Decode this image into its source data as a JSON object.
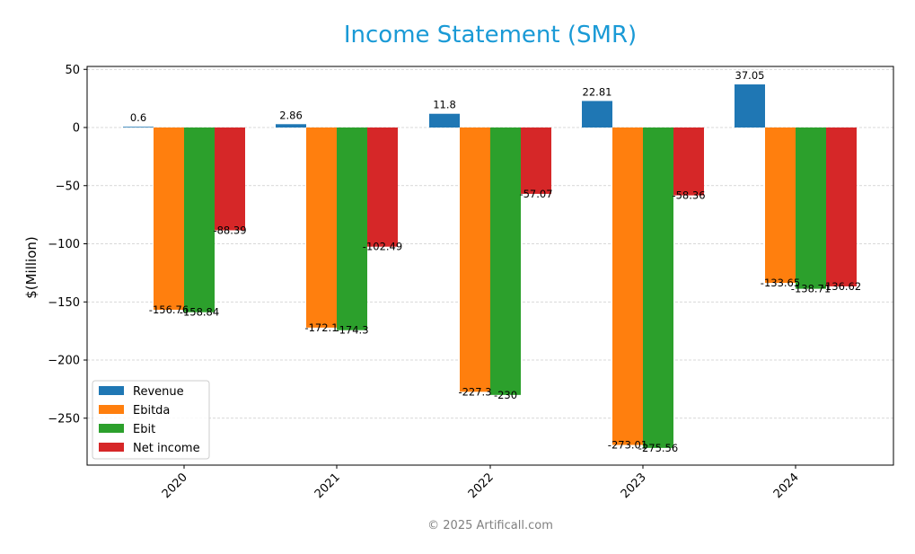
{
  "title": "Income Statement (SMR)",
  "footer": "© 2025 Artificall.com",
  "colors": {
    "title": "#1a9ad6",
    "footer": "#808080",
    "grid": "#cccccc"
  },
  "chart_data": {
    "type": "bar",
    "title": "Income Statement (SMR)",
    "xlabel": "",
    "ylabel": "$(Million)",
    "categories": [
      "2020",
      "2021",
      "2022",
      "2023",
      "2024"
    ],
    "series": [
      {
        "name": "Revenue",
        "color": "#1f77b4",
        "values": [
          0.6,
          2.86,
          11.8,
          22.81,
          37.05
        ],
        "labels": [
          "0.6",
          "2.86",
          "11.8",
          "22.81",
          "37.05"
        ]
      },
      {
        "name": "Ebitda",
        "color": "#ff7f0e",
        "values": [
          -156.76,
          -172.1,
          -227.3,
          -273.01,
          -133.65
        ],
        "labels": [
          "-156.76",
          "-172.1",
          "-227.3",
          "-273.01",
          "-133.65"
        ]
      },
      {
        "name": "Ebit",
        "color": "#2ca02c",
        "values": [
          -158.84,
          -174.3,
          -230,
          -275.56,
          -138.71
        ],
        "labels": [
          "-158.84",
          "-174.3",
          "-230",
          "-275.56",
          "-138.71"
        ]
      },
      {
        "name": "Net income",
        "color": "#d62728",
        "values": [
          -88.39,
          -102.49,
          -57.07,
          -58.36,
          -136.62
        ],
        "labels": [
          "-88.39",
          "-102.49",
          "-57.07",
          "-58.36",
          "-136.62"
        ]
      }
    ],
    "ylim": [
      -290,
      53
    ],
    "yticks": [
      50,
      0,
      -50,
      -100,
      -150,
      -200,
      -250
    ],
    "ytick_labels": [
      "50",
      "0",
      "−50",
      "−100",
      "−150",
      "−200",
      "−250"
    ],
    "grid": true,
    "legend_position": "lower-left"
  }
}
